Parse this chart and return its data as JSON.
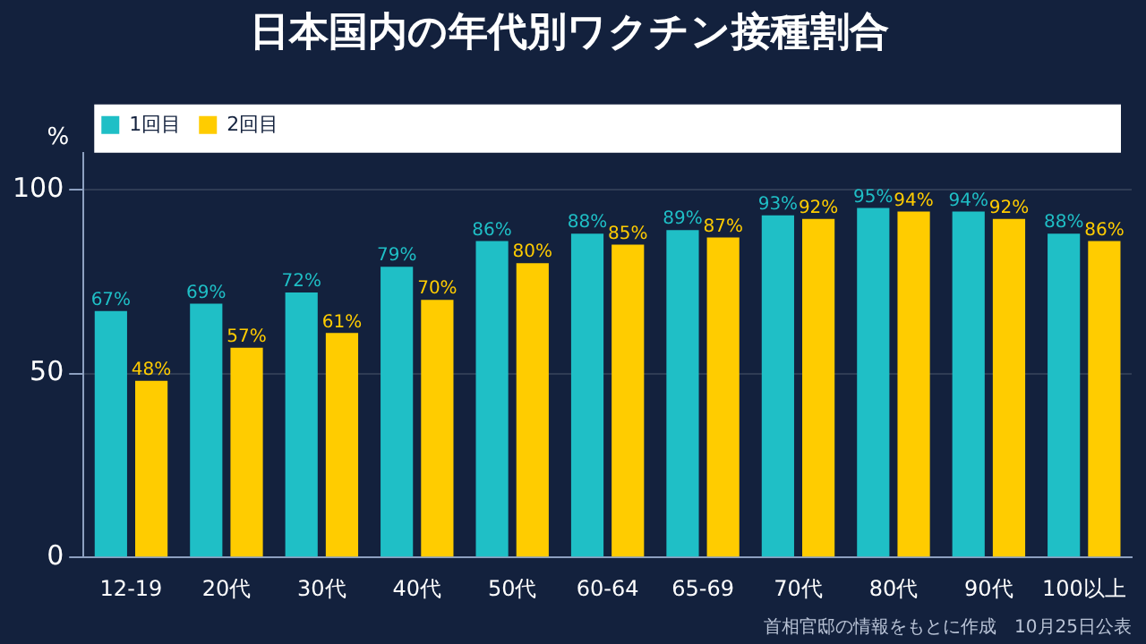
{
  "chart_data": {
    "type": "bar",
    "title": "日本国内の年代別ワクチン接種割合",
    "ylabel": "%",
    "categories": [
      "12-19",
      "20代",
      "30代",
      "40代",
      "50代",
      "60-64",
      "65-69",
      "70代",
      "80代",
      "90代",
      "100以上"
    ],
    "series": [
      {
        "name": "1回目",
        "color": "#1fbfc6",
        "values": [
          67,
          69,
          72,
          79,
          86,
          88,
          89,
          93,
          95,
          94,
          88
        ],
        "value_labels": [
          "67%",
          "69%",
          "72%",
          "79%",
          "86%",
          "88%",
          "89%",
          "93%",
          "95%",
          "94%",
          "88%"
        ]
      },
      {
        "name": "2回目",
        "color": "#ffcc00",
        "values": [
          48,
          57,
          61,
          70,
          80,
          85,
          87,
          92,
          94,
          92,
          86
        ],
        "value_labels": [
          "48%",
          "57%",
          "61%",
          "70%",
          "80%",
          "85%",
          "87%",
          "92%",
          "94%",
          "92%",
          "86%"
        ]
      }
    ],
    "ylim": [
      0,
      110
    ],
    "yticks": [
      0,
      50,
      100
    ],
    "grid": "y",
    "legend": "top left",
    "annotations": [
      "首相官邸の情報をもとに作成　10月25日公表"
    ]
  }
}
